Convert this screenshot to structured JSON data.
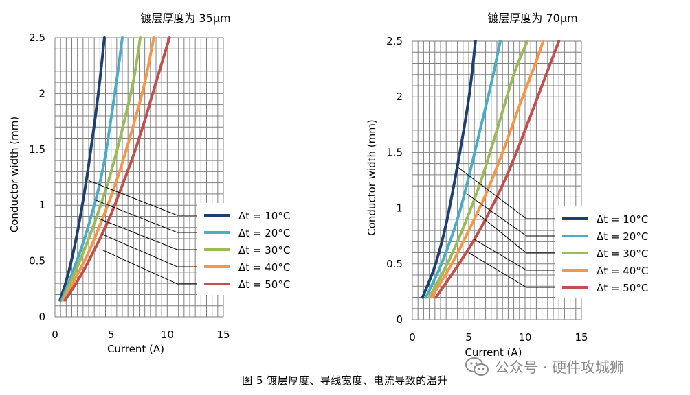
{
  "caption": "图 5   镀层厚度、导线宽度、电流导致的温升",
  "watermark": "公众号 · 硬件攻城狮",
  "colors": {
    "s10": "#1f3f6e",
    "s20": "#4bacc6",
    "s30": "#9bbb59",
    "s40": "#f79646",
    "s50": "#c0504d",
    "grid": "#7f7f7f",
    "leader": "#000000"
  },
  "chart_data": [
    {
      "type": "line",
      "title": "镀层厚度为 35μm",
      "xlabel": "Current (A)",
      "ylabel": "Conductor width (mm)",
      "xlim": [
        0,
        15
      ],
      "ylim": [
        0,
        2.5
      ],
      "x_ticks": [
        "0",
        "5",
        "10",
        "15"
      ],
      "y_ticks": [
        "0",
        "0.5",
        "1",
        "1.5",
        "2",
        "2.5"
      ],
      "grid": true,
      "legend_position": "lower-right",
      "series": [
        {
          "name": "Δt = 10°C",
          "color_key": "s10",
          "points": [
            [
              0.45,
              0.15
            ],
            [
              1.0,
              0.32
            ],
            [
              1.5,
              0.52
            ],
            [
              2.0,
              0.76
            ],
            [
              2.5,
              1.04
            ],
            [
              3.0,
              1.36
            ],
            [
              3.5,
              1.72
            ],
            [
              4.0,
              2.12
            ],
            [
              4.4,
              2.5
            ]
          ]
        },
        {
          "name": "Δt = 20°C",
          "color_key": "s20",
          "points": [
            [
              0.6,
              0.15
            ],
            [
              1.5,
              0.38
            ],
            [
              2.5,
              0.66
            ],
            [
              3.5,
              1.0
            ],
            [
              4.0,
              1.2
            ],
            [
              4.5,
              1.45
            ],
            [
              5.0,
              1.78
            ],
            [
              5.5,
              2.12
            ],
            [
              6.0,
              2.5
            ]
          ]
        },
        {
          "name": "Δt = 30°C",
          "color_key": "s30",
          "points": [
            [
              0.7,
              0.15
            ],
            [
              2.0,
              0.45
            ],
            [
              3.0,
              0.7
            ],
            [
              4.0,
              0.98
            ],
            [
              5.0,
              1.3
            ],
            [
              6.0,
              1.68
            ],
            [
              7.0,
              2.12
            ],
            [
              7.6,
              2.5
            ]
          ]
        },
        {
          "name": "Δt = 40°C",
          "color_key": "s40",
          "points": [
            [
              0.8,
              0.15
            ],
            [
              2.0,
              0.38
            ],
            [
              3.0,
              0.58
            ],
            [
              4.0,
              0.82
            ],
            [
              5.0,
              1.08
            ],
            [
              6.0,
              1.38
            ],
            [
              7.0,
              1.72
            ],
            [
              8.0,
              2.1
            ],
            [
              8.8,
              2.5
            ]
          ]
        },
        {
          "name": "Δt = 50°C",
          "color_key": "s50",
          "points": [
            [
              0.9,
              0.15
            ],
            [
              2.0,
              0.32
            ],
            [
              3.0,
              0.5
            ],
            [
              4.0,
              0.7
            ],
            [
              5.0,
              0.92
            ],
            [
              6.0,
              1.18
            ],
            [
              7.0,
              1.45
            ],
            [
              8.0,
              1.76
            ],
            [
              9.0,
              2.1
            ],
            [
              10.2,
              2.5
            ]
          ]
        }
      ]
    },
    {
      "type": "line",
      "title": "镀层厚度为 70μm",
      "xlabel": "Current (A)",
      "ylabel": "Conductor width (mm)",
      "xlim": [
        0,
        15
      ],
      "ylim": [
        0,
        2.5
      ],
      "x_ticks": [
        "0",
        "5",
        "10",
        "15"
      ],
      "y_ticks": [
        "0",
        "0.5",
        "1",
        "1.5",
        "2",
        "2.5"
      ],
      "grid": true,
      "legend_position": "lower-right",
      "series": [
        {
          "name": "Δt = 10°C",
          "color_key": "s10",
          "points": [
            [
              0.9,
              0.2
            ],
            [
              2.0,
              0.48
            ],
            [
              3.0,
              0.86
            ],
            [
              4.0,
              1.38
            ],
            [
              5.0,
              1.98
            ],
            [
              5.6,
              2.5
            ]
          ]
        },
        {
          "name": "Δt = 20°C",
          "color_key": "s20",
          "points": [
            [
              1.2,
              0.2
            ],
            [
              2.5,
              0.48
            ],
            [
              4.0,
              0.9
            ],
            [
              5.0,
              1.28
            ],
            [
              6.0,
              1.7
            ],
            [
              7.0,
              2.12
            ],
            [
              7.8,
              2.5
            ]
          ]
        },
        {
          "name": "Δt = 30°C",
          "color_key": "s30",
          "points": [
            [
              1.5,
              0.2
            ],
            [
              3.0,
              0.48
            ],
            [
              4.5,
              0.82
            ],
            [
              6.0,
              1.22
            ],
            [
              7.5,
              1.7
            ],
            [
              9.0,
              2.2
            ],
            [
              10.2,
              2.5
            ]
          ]
        },
        {
          "name": "Δt = 40°C",
          "color_key": "s40",
          "points": [
            [
              1.7,
              0.2
            ],
            [
              3.5,
              0.5
            ],
            [
              5.0,
              0.8
            ],
            [
              6.5,
              1.12
            ],
            [
              8.0,
              1.5
            ],
            [
              9.5,
              1.92
            ],
            [
              11.0,
              2.32
            ],
            [
              11.6,
              2.5
            ]
          ]
        },
        {
          "name": "Δt = 50°C",
          "color_key": "s50",
          "points": [
            [
              2.1,
              0.2
            ],
            [
              4.0,
              0.48
            ],
            [
              5.5,
              0.72
            ],
            [
              7.0,
              1.0
            ],
            [
              8.5,
              1.32
            ],
            [
              10.0,
              1.7
            ],
            [
              11.5,
              2.1
            ],
            [
              13.0,
              2.5
            ]
          ]
        }
      ]
    }
  ]
}
